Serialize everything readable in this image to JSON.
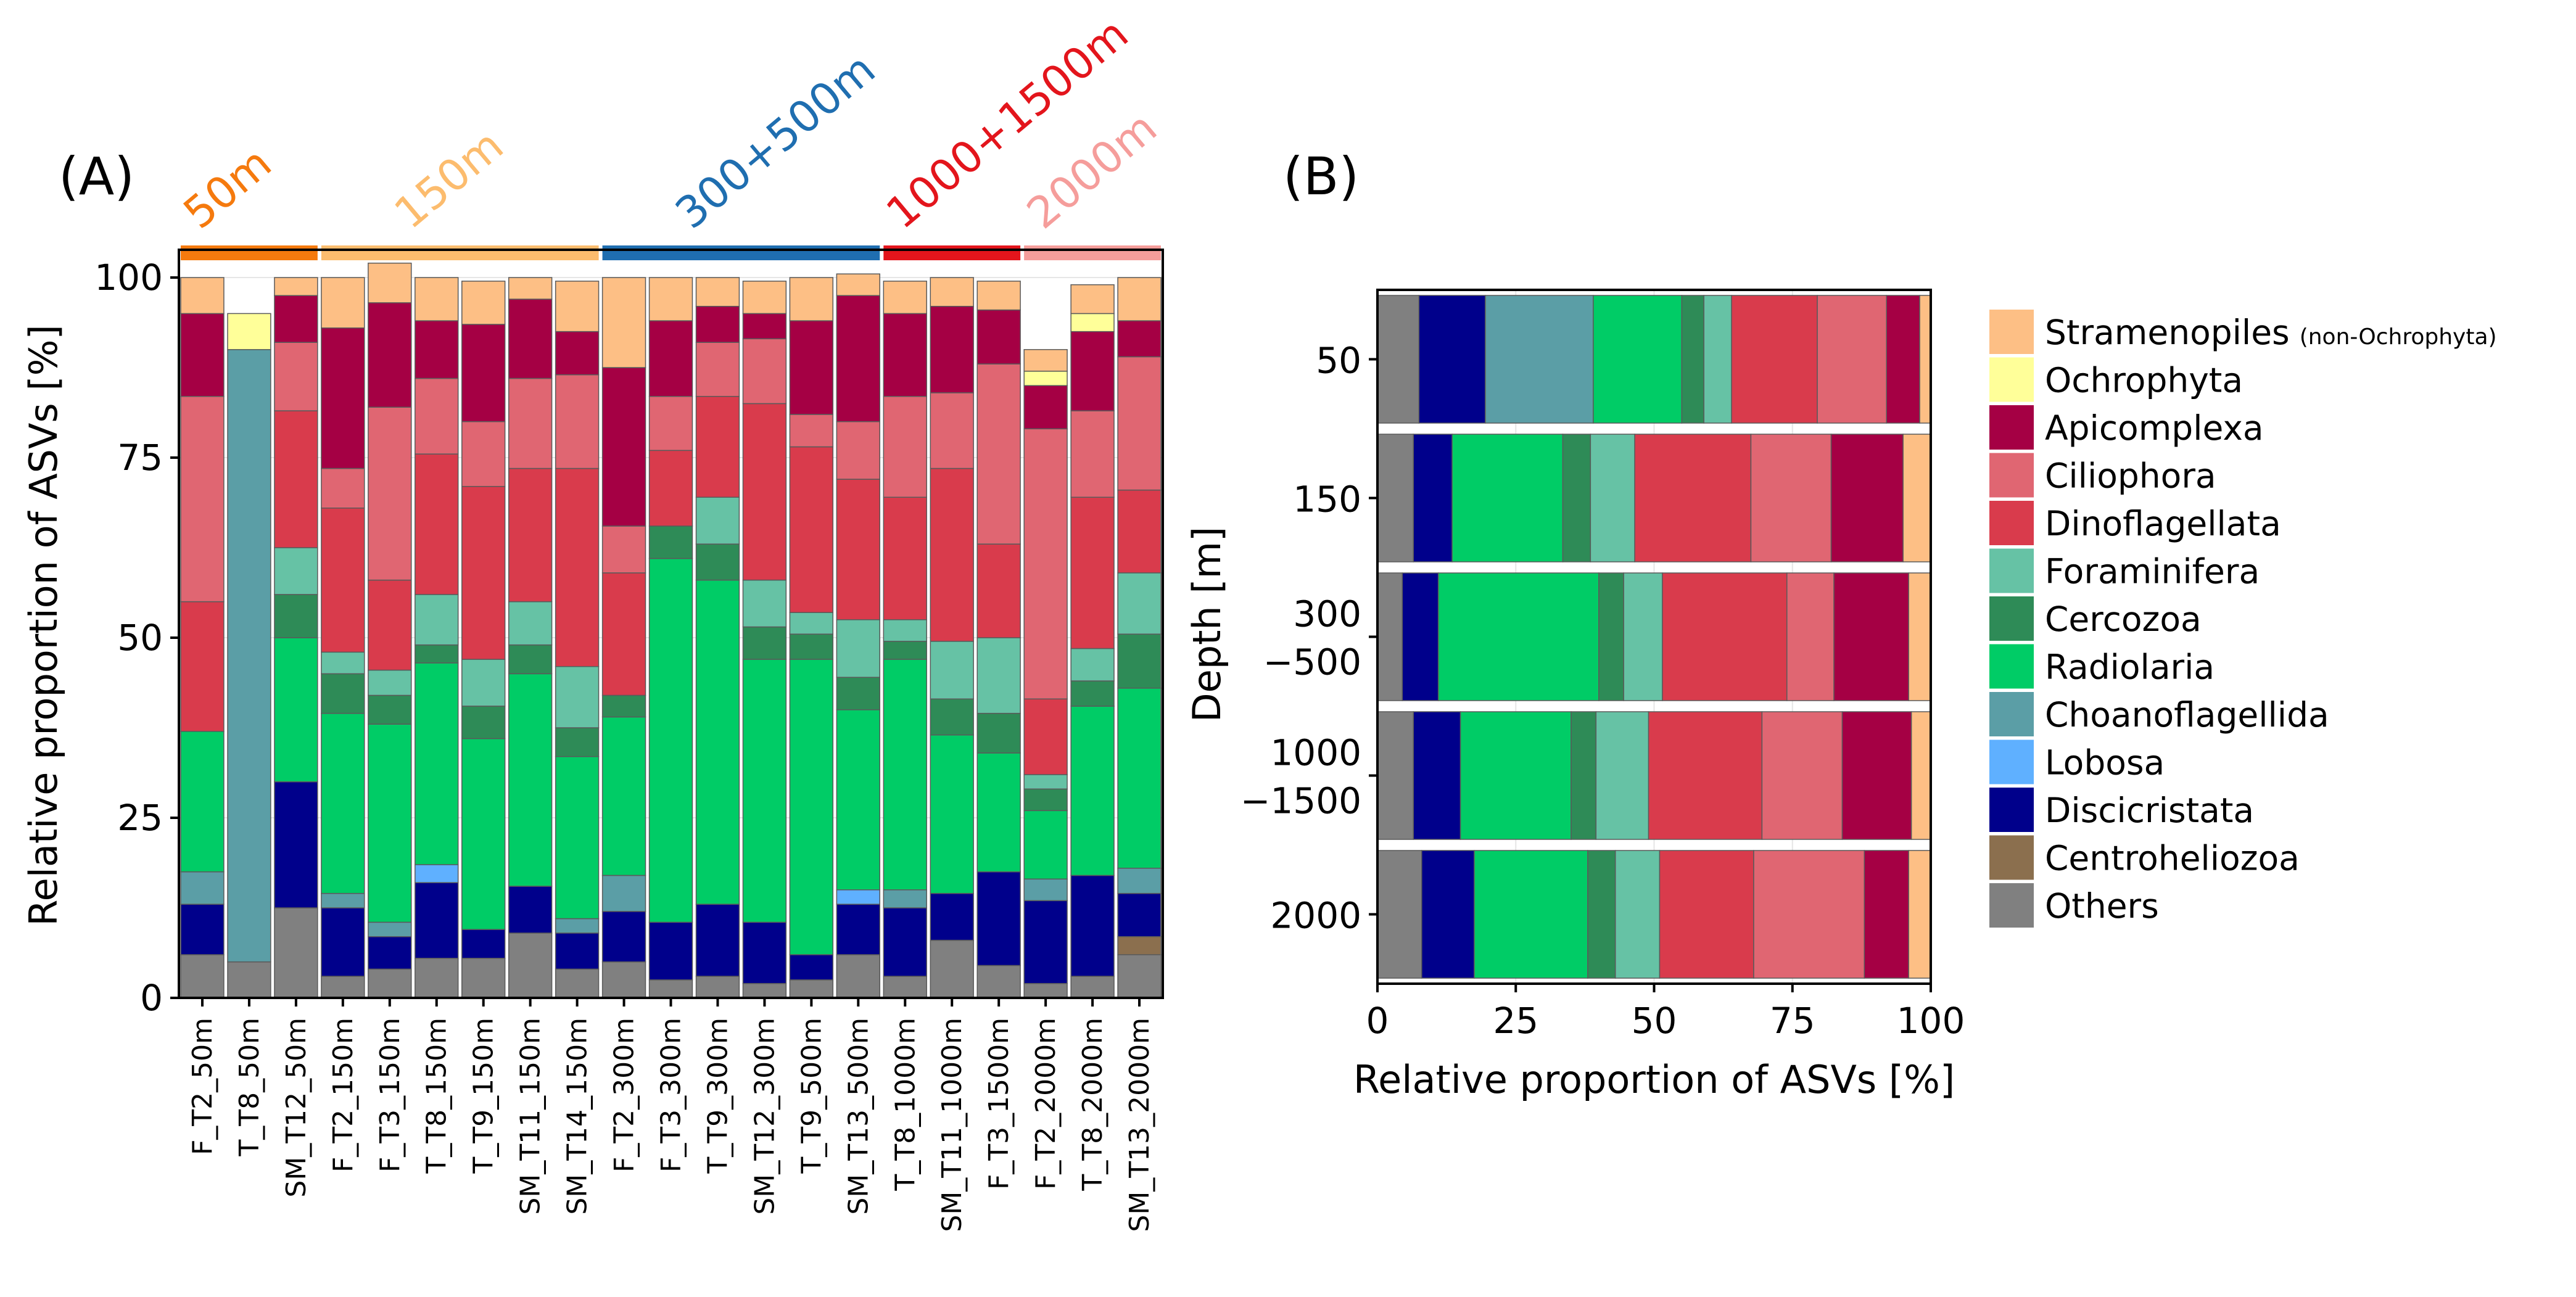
{
  "panel_labels": {
    "a": "(A)",
    "b": "(B)"
  },
  "groups": [
    {
      "label": "50m",
      "color": "#F57A0E"
    },
    {
      "label": "150m",
      "color": "#FCBC6E"
    },
    {
      "label": "300+500m",
      "color": "#1F6EB0"
    },
    {
      "label": "1000+1500m",
      "color": "#E3151C"
    },
    {
      "label": "2000m",
      "color": "#F59D9B"
    }
  ],
  "chart_data": [
    {
      "id": "A",
      "type": "bar",
      "stacked": true,
      "orientation": "vertical",
      "title": "",
      "xlabel": "",
      "ylabel": "Relative proportion of ASVs [%]",
      "ylim": [
        0,
        100
      ],
      "yticks": [
        "0",
        "25",
        "50",
        "75",
        "100"
      ],
      "categories": [
        "F_T2_50m",
        "T_T8_50m",
        "SM_T12_50m",
        "F_T2_150m",
        "F_T3_150m",
        "T_T8_150m",
        "T_T9_150m",
        "SM_T11_150m",
        "SM_T14_150m",
        "F_T2_300m",
        "F_T3_300m",
        "T_T9_300m",
        "SM_T12_300m",
        "T_T9_500m",
        "SM_T13_500m",
        "T_T8_1000m",
        "SM_T11_1000m",
        "F_T3_1500m",
        "F_T2_2000m",
        "T_T8_2000m",
        "SM_T13_2000m"
      ],
      "category_group": [
        0,
        0,
        0,
        1,
        1,
        1,
        1,
        1,
        1,
        2,
        2,
        2,
        2,
        2,
        2,
        3,
        3,
        3,
        4,
        4,
        4
      ],
      "series": [
        {
          "name": "Others",
          "color": "#808080",
          "values": [
            6,
            5,
            12.5,
            3,
            4,
            5.5,
            5.5,
            9,
            4,
            5,
            2.5,
            3,
            2,
            2.5,
            6,
            3,
            8,
            4.5,
            2,
            3,
            6
          ]
        },
        {
          "name": "Centroheliozoa",
          "color": "#8B6F4E",
          "values": [
            0,
            0,
            0,
            0,
            0,
            0,
            0,
            0,
            0,
            0,
            0,
            0,
            0,
            0,
            0,
            0,
            0,
            0,
            0,
            0,
            2.5
          ]
        },
        {
          "name": "Discicristata",
          "color": "#00008B",
          "values": [
            7,
            0,
            17.5,
            9.5,
            4.5,
            10.5,
            4,
            6.5,
            5,
            7,
            8,
            10,
            8.5,
            3.5,
            7,
            9.5,
            6.5,
            13,
            11.5,
            14,
            6
          ]
        },
        {
          "name": "Lobosa",
          "color": "#5FB0FF",
          "values": [
            0,
            0,
            0,
            0,
            0,
            2.5,
            0,
            0,
            0,
            0,
            0,
            0,
            0,
            0,
            2,
            0,
            0,
            0,
            0,
            0,
            0
          ]
        },
        {
          "name": "Choanoflagellida",
          "color": "#5B9EA6",
          "values": [
            4.5,
            85,
            0,
            2,
            2,
            0,
            0,
            0,
            2,
            5,
            0,
            0,
            0,
            0,
            0,
            2.5,
            0,
            0,
            3,
            0,
            3.5
          ]
        },
        {
          "name": "Radiolaria",
          "color": "#00CC66",
          "values": [
            19.5,
            0,
            20,
            25,
            27.5,
            28,
            26.5,
            29.5,
            22.5,
            22,
            50.5,
            45,
            36.5,
            41,
            25,
            32,
            22,
            16.5,
            9.5,
            23.5,
            25
          ]
        },
        {
          "name": "Cercozoa",
          "color": "#2E8B57",
          "values": [
            0,
            0,
            6,
            5.5,
            4,
            2.5,
            4.5,
            4,
            4,
            3,
            4.5,
            5,
            4.5,
            3.5,
            4.5,
            2.5,
            5,
            5.5,
            3,
            3.5,
            7.5
          ]
        },
        {
          "name": "Foraminifera",
          "color": "#66C2A5",
          "values": [
            0,
            0,
            6.5,
            3,
            3.5,
            7,
            6.5,
            6,
            8.5,
            0,
            0,
            6.5,
            6.5,
            3,
            8,
            3,
            8,
            10.5,
            2,
            4.5,
            8.5
          ]
        },
        {
          "name": "Dinoflagellata",
          "color": "#D93B4C",
          "values": [
            18,
            0,
            19,
            20,
            12.5,
            19.5,
            24,
            18.5,
            27.5,
            17,
            10.5,
            14,
            24.5,
            23,
            19.5,
            17,
            24,
            13,
            10.5,
            21,
            11.5
          ]
        },
        {
          "name": "Ciliophora",
          "color": "#E06672",
          "values": [
            28.5,
            0,
            9.5,
            5.5,
            24,
            10.5,
            9,
            12.5,
            13,
            6.5,
            7.5,
            7.5,
            9,
            4.5,
            8,
            14,
            10.5,
            25,
            37.5,
            12,
            18.5
          ]
        },
        {
          "name": "Apicomplexa",
          "color": "#A50044",
          "values": [
            11.5,
            0,
            6.5,
            19.5,
            14.5,
            8,
            13.5,
            11,
            6,
            22,
            10.5,
            5,
            3.5,
            13,
            17.5,
            11.5,
            12,
            7.5,
            6,
            11,
            5
          ]
        },
        {
          "name": "Ochrophyta",
          "color": "#FFFF99",
          "values": [
            0,
            5,
            0,
            0,
            0,
            0,
            0,
            0,
            0,
            0,
            0,
            0,
            0,
            0,
            0,
            0,
            0,
            0,
            2,
            2.5,
            0
          ]
        },
        {
          "name": "Stramenopiles",
          "color": "#FDBF85",
          "values": [
            5,
            0,
            2.5,
            7,
            5.5,
            6,
            6,
            3,
            7,
            12.5,
            6,
            4,
            4.5,
            6,
            3,
            4.5,
            4,
            4,
            3,
            4,
            6
          ]
        }
      ]
    },
    {
      "id": "B",
      "type": "bar",
      "stacked": true,
      "orientation": "horizontal",
      "title": "",
      "xlabel": "Relative proportion of ASVs [%]",
      "ylabel": "Depth [m]",
      "xlim": [
        0,
        100
      ],
      "xticks": [
        "0",
        "25",
        "50",
        "75",
        "100"
      ],
      "categories": [
        [
          "50"
        ],
        [
          "150"
        ],
        [
          "300",
          "−500"
        ],
        [
          "1000",
          "−1500"
        ],
        [
          "2000"
        ]
      ],
      "series": [
        {
          "name": "Others",
          "color": "#808080",
          "values": [
            7.5,
            6.5,
            4.5,
            6.5,
            8
          ]
        },
        {
          "name": "Discicristata",
          "color": "#00008B",
          "values": [
            12,
            7,
            6.5,
            8.5,
            9.5
          ]
        },
        {
          "name": "Choanoflagellida",
          "color": "#5B9EA6",
          "values": [
            19.5,
            0,
            0,
            0,
            0
          ]
        },
        {
          "name": "Radiolaria",
          "color": "#00CC66",
          "values": [
            16,
            20,
            29,
            20,
            20.5
          ]
        },
        {
          "name": "Cercozoa",
          "color": "#2E8B57",
          "values": [
            4,
            5,
            4.5,
            4.5,
            5
          ]
        },
        {
          "name": "Foraminifera",
          "color": "#66C2A5",
          "values": [
            5,
            8,
            7,
            9.5,
            8
          ]
        },
        {
          "name": "Dinoflagellata",
          "color": "#D93B4C",
          "values": [
            15.5,
            21,
            22.5,
            20.5,
            17
          ]
        },
        {
          "name": "Ciliophora",
          "color": "#E06672",
          "values": [
            12.5,
            14.5,
            8.5,
            14.5,
            20
          ]
        },
        {
          "name": "Apicomplexa",
          "color": "#A50044",
          "values": [
            6,
            13,
            13.5,
            12.5,
            8
          ]
        },
        {
          "name": "Stramenopiles",
          "color": "#FDBF85",
          "values": [
            2,
            5,
            4,
            3.5,
            4
          ]
        }
      ]
    }
  ],
  "legend": {
    "position": "right",
    "items": [
      {
        "name": "Stramenopiles",
        "suffix": "(non-Ochrophyta)",
        "color": "#FDBF85"
      },
      {
        "name": "Ochrophyta",
        "suffix": "",
        "color": "#FFFF99"
      },
      {
        "name": "Apicomplexa",
        "suffix": "",
        "color": "#A50044"
      },
      {
        "name": "Ciliophora",
        "suffix": "",
        "color": "#E06672"
      },
      {
        "name": "Dinoflagellata",
        "suffix": "",
        "color": "#D93B4C"
      },
      {
        "name": "Foraminifera",
        "suffix": "",
        "color": "#66C2A5"
      },
      {
        "name": "Cercozoa",
        "suffix": "",
        "color": "#2E8B57"
      },
      {
        "name": "Radiolaria",
        "suffix": "",
        "color": "#00CC66"
      },
      {
        "name": "Choanoflagellida",
        "suffix": "",
        "color": "#5B9EA6"
      },
      {
        "name": "Lobosa",
        "suffix": "",
        "color": "#5FB0FF"
      },
      {
        "name": "Discicristata",
        "suffix": "",
        "color": "#00008B"
      },
      {
        "name": "Centroheliozoa",
        "suffix": "",
        "color": "#8B6F4E"
      },
      {
        "name": "Others",
        "suffix": "",
        "color": "#808080"
      }
    ]
  }
}
